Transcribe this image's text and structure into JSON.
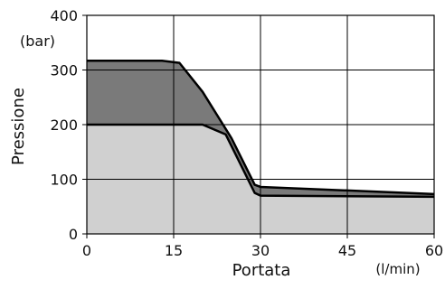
{
  "chart_data": {
    "type": "area",
    "title": "",
    "xlabel": "Portata",
    "xunit": "(l/min)",
    "ylabel": "Pressione",
    "yunit": "(bar)",
    "xlim": [
      0,
      60
    ],
    "ylim": [
      0,
      400
    ],
    "xticks": [
      0,
      15,
      30,
      45,
      60
    ],
    "yticks": [
      0,
      100,
      200,
      300,
      400
    ],
    "xtick_labels": [
      "0",
      "15",
      "30",
      "45",
      "60"
    ],
    "ytick_labels": [
      "0",
      "100",
      "200",
      "300",
      "400"
    ],
    "grid": true,
    "legend": "none",
    "colors": {
      "light_fill": "#d0d0d0",
      "dark_fill": "#7a7a7a",
      "line": "#000000"
    },
    "series": [
      {
        "x": [
          0,
          13,
          16,
          20,
          25,
          29,
          30,
          60
        ],
        "y": [
          317,
          317,
          313,
          260,
          175,
          90,
          86,
          73
        ]
      },
      {
        "x": [
          0,
          20,
          24,
          29,
          30,
          60
        ],
        "y": [
          200,
          200,
          182,
          75,
          70,
          68
        ]
      }
    ]
  }
}
